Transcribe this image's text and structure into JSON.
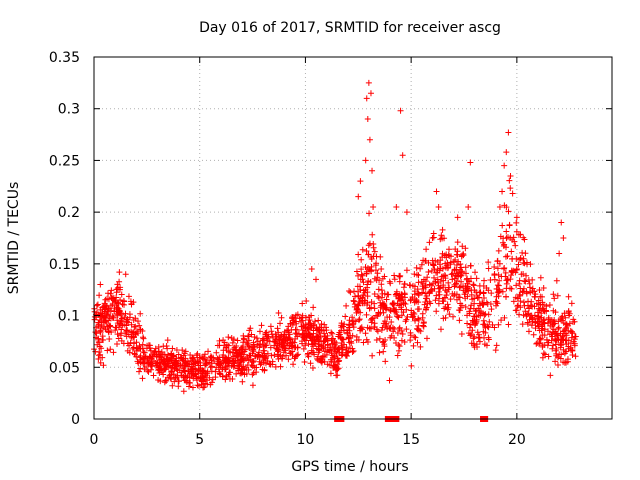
{
  "chart_data": {
    "type": "scatter",
    "title": "Day 016 of 2017, SRMTID for receiver ascg",
    "xlabel": "GPS time / hours",
    "ylabel": "SRMTID / TECUs",
    "xlim": [
      0,
      24.5
    ],
    "ylim": [
      0,
      0.35
    ],
    "grid": true,
    "marker": "+",
    "series_color": "#ff0000",
    "xticks": [
      0,
      5,
      10,
      15,
      20
    ],
    "xtick_labels": [
      "0",
      "5",
      "10",
      "15",
      "20"
    ],
    "yticks": [
      0,
      0.05,
      0.1,
      0.15,
      0.2,
      0.25,
      0.3,
      0.35
    ],
    "ytick_labels": [
      "0",
      "0.05",
      "0.1",
      "0.15",
      "0.2",
      "0.25",
      "0.3",
      "0.35"
    ],
    "trend": [
      {
        "x": 0.0,
        "y": 0.085,
        "s": 0.025
      },
      {
        "x": 0.5,
        "y": 0.095,
        "s": 0.022
      },
      {
        "x": 1.0,
        "y": 0.105,
        "s": 0.022
      },
      {
        "x": 1.5,
        "y": 0.095,
        "s": 0.02
      },
      {
        "x": 2.0,
        "y": 0.075,
        "s": 0.018
      },
      {
        "x": 2.5,
        "y": 0.06,
        "s": 0.015
      },
      {
        "x": 3.0,
        "y": 0.055,
        "s": 0.013
      },
      {
        "x": 4.0,
        "y": 0.05,
        "s": 0.012
      },
      {
        "x": 5.0,
        "y": 0.045,
        "s": 0.011
      },
      {
        "x": 6.0,
        "y": 0.055,
        "s": 0.013
      },
      {
        "x": 7.0,
        "y": 0.06,
        "s": 0.014
      },
      {
        "x": 8.0,
        "y": 0.065,
        "s": 0.015
      },
      {
        "x": 9.0,
        "y": 0.075,
        "s": 0.016
      },
      {
        "x": 10.0,
        "y": 0.085,
        "s": 0.018
      },
      {
        "x": 11.0,
        "y": 0.07,
        "s": 0.016
      },
      {
        "x": 11.5,
        "y": 0.06,
        "s": 0.014
      },
      {
        "x": 12.0,
        "y": 0.08,
        "s": 0.02
      },
      {
        "x": 12.5,
        "y": 0.11,
        "s": 0.03
      },
      {
        "x": 13.0,
        "y": 0.13,
        "s": 0.045
      },
      {
        "x": 13.5,
        "y": 0.11,
        "s": 0.035
      },
      {
        "x": 14.0,
        "y": 0.09,
        "s": 0.025
      },
      {
        "x": 14.5,
        "y": 0.11,
        "s": 0.03
      },
      {
        "x": 15.0,
        "y": 0.105,
        "s": 0.028
      },
      {
        "x": 15.5,
        "y": 0.12,
        "s": 0.03
      },
      {
        "x": 16.0,
        "y": 0.135,
        "s": 0.03
      },
      {
        "x": 17.0,
        "y": 0.14,
        "s": 0.03
      },
      {
        "x": 17.5,
        "y": 0.13,
        "s": 0.03
      },
      {
        "x": 18.0,
        "y": 0.11,
        "s": 0.03
      },
      {
        "x": 18.5,
        "y": 0.1,
        "s": 0.03
      },
      {
        "x": 19.0,
        "y": 0.12,
        "s": 0.035
      },
      {
        "x": 19.5,
        "y": 0.16,
        "s": 0.04
      },
      {
        "x": 20.0,
        "y": 0.15,
        "s": 0.035
      },
      {
        "x": 20.5,
        "y": 0.12,
        "s": 0.03
      },
      {
        "x": 21.0,
        "y": 0.1,
        "s": 0.025
      },
      {
        "x": 21.5,
        "y": 0.085,
        "s": 0.022
      },
      {
        "x": 22.0,
        "y": 0.085,
        "s": 0.025
      },
      {
        "x": 22.5,
        "y": 0.08,
        "s": 0.02
      },
      {
        "x": 22.8,
        "y": 0.08,
        "s": 0.02
      }
    ],
    "peak_points": [
      {
        "x": 13.0,
        "y": 0.325
      },
      {
        "x": 13.1,
        "y": 0.315
      },
      {
        "x": 12.9,
        "y": 0.31
      },
      {
        "x": 12.95,
        "y": 0.29
      },
      {
        "x": 13.05,
        "y": 0.27
      },
      {
        "x": 12.85,
        "y": 0.25
      },
      {
        "x": 13.15,
        "y": 0.24
      },
      {
        "x": 12.6,
        "y": 0.23
      },
      {
        "x": 12.5,
        "y": 0.215
      },
      {
        "x": 13.2,
        "y": 0.205
      },
      {
        "x": 14.5,
        "y": 0.298
      },
      {
        "x": 14.6,
        "y": 0.255
      },
      {
        "x": 14.3,
        "y": 0.205
      },
      {
        "x": 14.8,
        "y": 0.2
      },
      {
        "x": 16.2,
        "y": 0.22
      },
      {
        "x": 16.3,
        "y": 0.205
      },
      {
        "x": 17.2,
        "y": 0.195
      },
      {
        "x": 17.8,
        "y": 0.248
      },
      {
        "x": 17.7,
        "y": 0.205
      },
      {
        "x": 19.6,
        "y": 0.277
      },
      {
        "x": 19.5,
        "y": 0.258
      },
      {
        "x": 19.4,
        "y": 0.245
      },
      {
        "x": 19.7,
        "y": 0.235
      },
      {
        "x": 19.3,
        "y": 0.22
      },
      {
        "x": 19.8,
        "y": 0.218
      },
      {
        "x": 19.2,
        "y": 0.205
      },
      {
        "x": 20.0,
        "y": 0.195
      },
      {
        "x": 22.1,
        "y": 0.19
      },
      {
        "x": 22.2,
        "y": 0.175
      },
      {
        "x": 22.0,
        "y": 0.16
      },
      {
        "x": 10.3,
        "y": 0.145
      },
      {
        "x": 10.5,
        "y": 0.135
      },
      {
        "x": 1.2,
        "y": 0.142
      },
      {
        "x": 1.5,
        "y": 0.14
      },
      {
        "x": 0.3,
        "y": 0.13
      }
    ],
    "gap_markers_x": [
      11.5,
      11.7,
      13.9,
      14.0,
      14.2,
      14.3,
      18.4,
      18.5
    ]
  }
}
